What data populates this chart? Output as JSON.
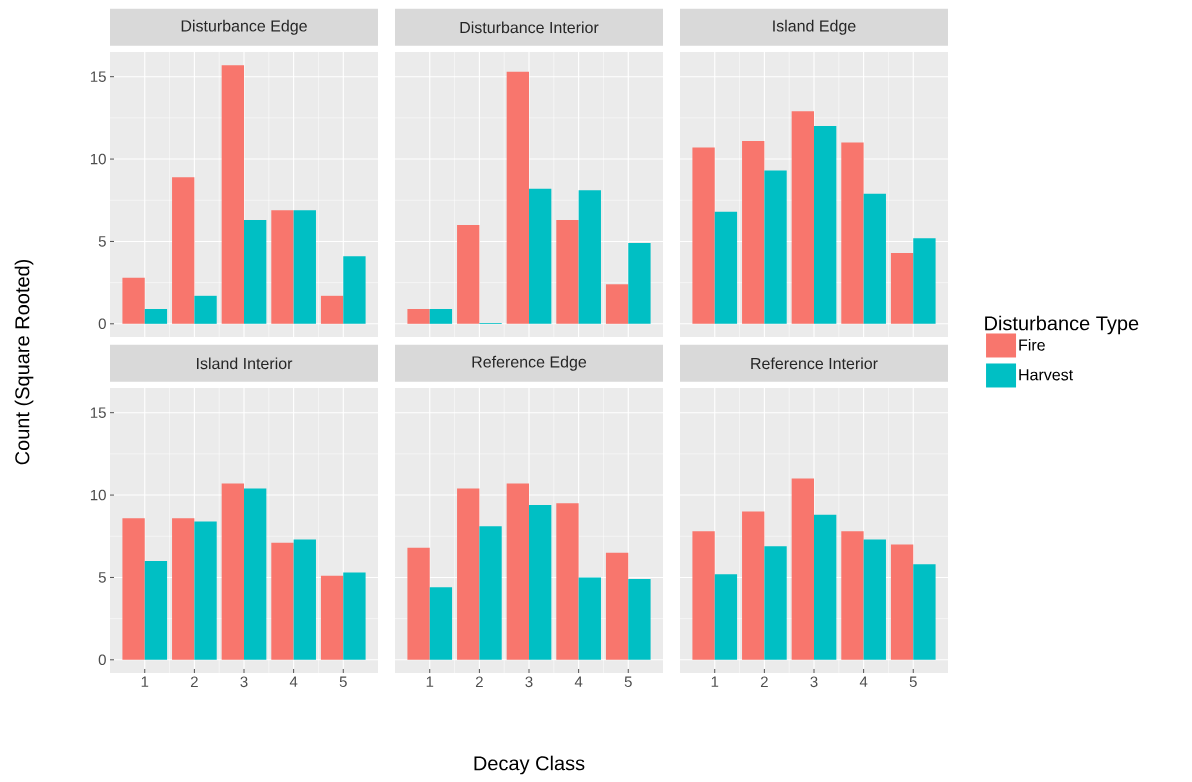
{
  "chart_data": [
    {
      "type": "bar",
      "title": "Disturbance Edge",
      "ylabel": "Count (Square Rooted)",
      "x": [
        1,
        2,
        3,
        4,
        5
      ],
      "xlim": [
        0.3,
        5.7
      ],
      "xticks": [
        1,
        2,
        3,
        4,
        5
      ],
      "ylim": [
        -0.8,
        16.5
      ],
      "yticks": [
        0,
        5,
        10,
        15
      ],
      "grid": true,
      "tick_labels": "y",
      "series": [
        {
          "color": "#f8766d",
          "values": [
            2.8,
            8.9,
            15.7,
            6.9,
            1.7
          ]
        },
        {
          "color": "#00bfc4",
          "values": [
            0.9,
            1.7,
            6.3,
            6.9,
            4.1
          ]
        }
      ]
    },
    {
      "type": "bar",
      "title": "Disturbance Interior",
      "x": [
        1,
        2,
        3,
        4,
        5
      ],
      "xlim": [
        0.3,
        5.7
      ],
      "xticks": [
        1,
        2,
        3,
        4,
        5
      ],
      "ylim": [
        -0.8,
        16.5
      ],
      "yticks": [
        0,
        5,
        10,
        15
      ],
      "grid": true,
      "tick_labels": false,
      "series": [
        {
          "color": "#f8766d",
          "values": [
            0.9,
            6.0,
            15.3,
            6.3,
            2.4
          ]
        },
        {
          "color": "#00bfc4",
          "values": [
            0.9,
            0.05,
            8.2,
            8.1,
            4.9
          ]
        }
      ]
    },
    {
      "type": "bar",
      "title": "Island Edge",
      "legend_title": "Disturbance Type",
      "legend": "right",
      "x": [
        1,
        2,
        3,
        4,
        5
      ],
      "xlim": [
        0.3,
        5.7
      ],
      "xticks": [
        1,
        2,
        3,
        4,
        5
      ],
      "ylim": [
        -0.8,
        16.5
      ],
      "yticks": [
        0,
        5,
        10,
        15
      ],
      "grid": true,
      "tick_labels": false,
      "series": [
        {
          "name": "Fire",
          "color": "#f8766d",
          "values": [
            10.7,
            11.1,
            12.9,
            11.0,
            4.3
          ]
        },
        {
          "name": "Harvest",
          "color": "#00bfc4",
          "values": [
            6.8,
            9.3,
            12.0,
            7.9,
            5.2
          ]
        }
      ]
    },
    {
      "type": "bar",
      "title": "Island Interior",
      "x": [
        1,
        2,
        3,
        4,
        5
      ],
      "xlim": [
        0.3,
        5.7
      ],
      "xticks": [
        1,
        2,
        3,
        4,
        5
      ],
      "ylim": [
        -0.8,
        16.5
      ],
      "yticks": [
        0,
        5,
        10,
        15
      ],
      "grid": true,
      "series": [
        {
          "color": "#f8766d",
          "values": [
            8.6,
            8.6,
            10.7,
            7.1,
            5.1
          ]
        },
        {
          "color": "#00bfc4",
          "values": [
            6.0,
            8.4,
            10.4,
            7.3,
            5.3
          ]
        }
      ]
    },
    {
      "type": "bar",
      "title": "Reference Edge",
      "xlabel": "Decay Class",
      "x": [
        1,
        2,
        3,
        4,
        5
      ],
      "xlim": [
        0.3,
        5.7
      ],
      "xticks": [
        1,
        2,
        3,
        4,
        5
      ],
      "ylim": [
        -0.8,
        16.5
      ],
      "yticks": [
        0,
        5,
        10,
        15
      ],
      "grid": true,
      "tick_labels": "x",
      "series": [
        {
          "color": "#f8766d",
          "values": [
            6.8,
            10.4,
            10.7,
            9.5,
            6.5
          ]
        },
        {
          "color": "#00bfc4",
          "values": [
            4.4,
            8.1,
            9.4,
            5.0,
            4.9
          ]
        }
      ]
    },
    {
      "type": "bar",
      "title": "Reference Interior",
      "x": [
        1,
        2,
        3,
        4,
        5
      ],
      "xlim": [
        0.3,
        5.7
      ],
      "xticks": [
        1,
        2,
        3,
        4,
        5
      ],
      "ylim": [
        -0.8,
        16.5
      ],
      "yticks": [
        0,
        5,
        10,
        15
      ],
      "grid": true,
      "tick_labels": "x",
      "series": [
        {
          "color": "#f8766d",
          "values": [
            7.8,
            9.0,
            11.0,
            7.8,
            7.0
          ]
        },
        {
          "color": "#00bfc4",
          "values": [
            5.2,
            6.9,
            8.8,
            7.3,
            5.8
          ]
        }
      ]
    }
  ]
}
